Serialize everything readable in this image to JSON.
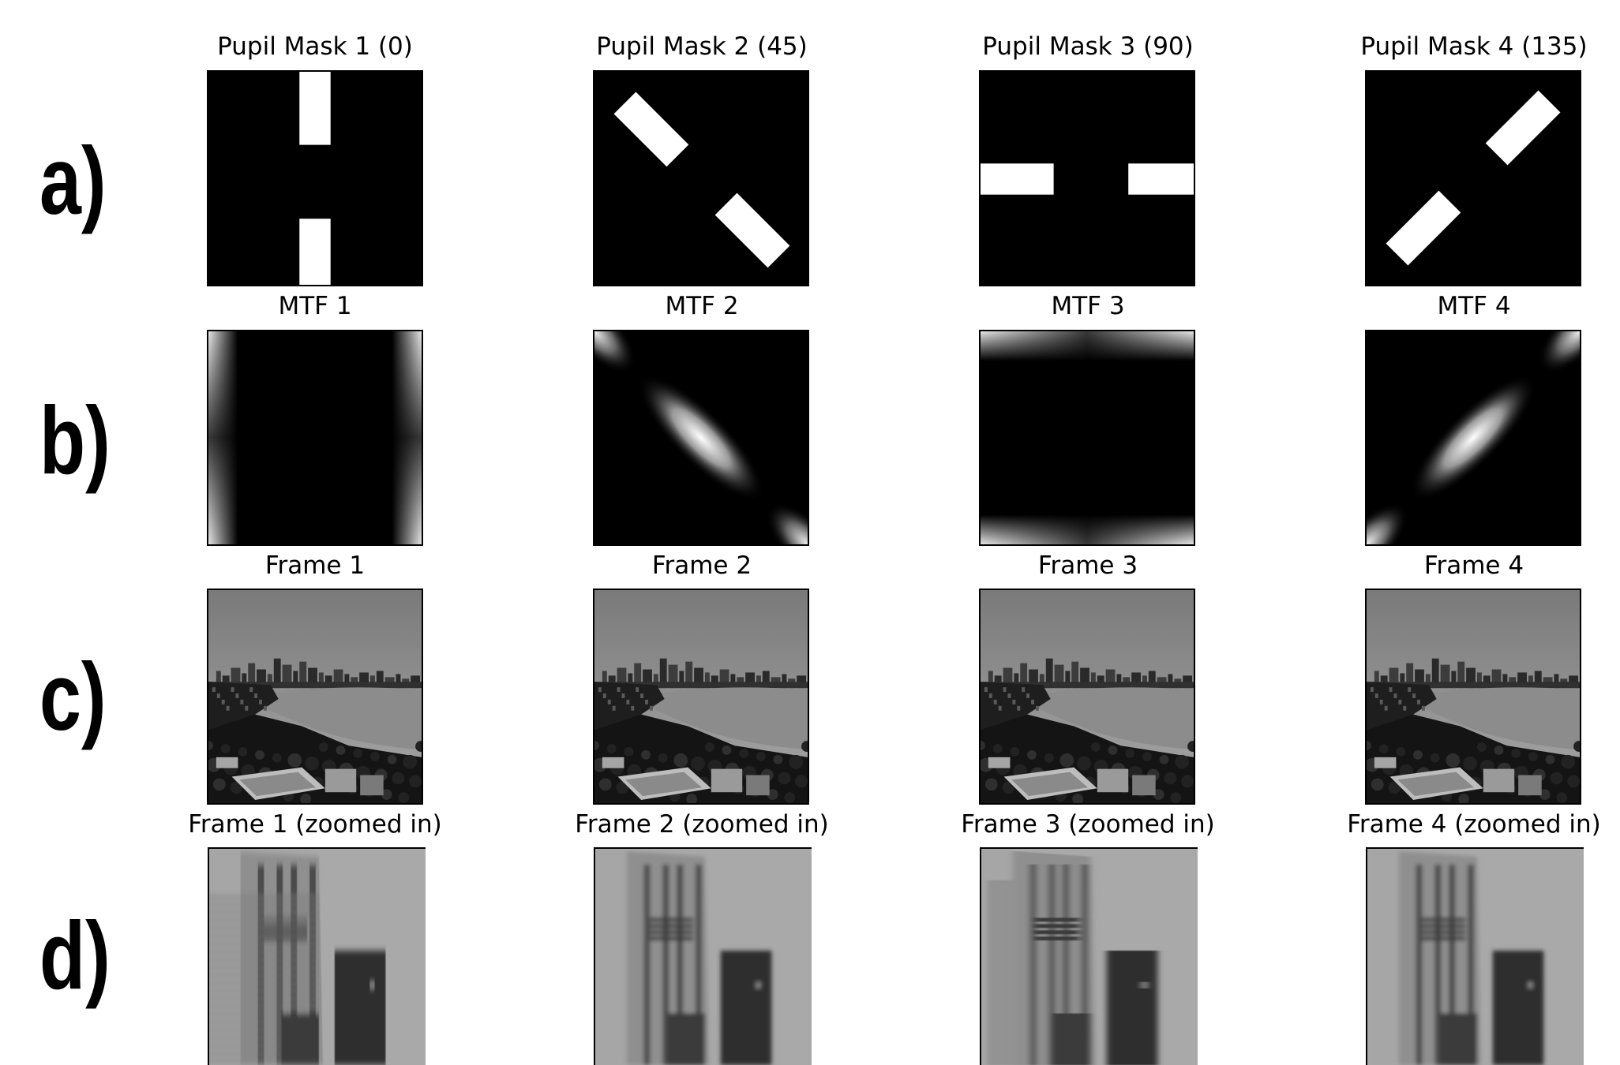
{
  "rows": {
    "a": "a)",
    "b": "b)",
    "c": "c)",
    "d": "d)"
  },
  "titles": {
    "masks": [
      "Pupil Mask 1 (0)",
      "Pupil Mask 2 (45)",
      "Pupil Mask 3 (90)",
      "Pupil Mask 4 (135)"
    ],
    "mtf": [
      "MTF 1",
      "MTF 2",
      "MTF 3",
      "MTF 4"
    ],
    "frames": [
      "Frame 1",
      "Frame 2",
      "Frame 3",
      "Frame 4"
    ],
    "zoomed": [
      "Frame 1  (zoomed in)",
      "Frame 2  (zoomed in)",
      "Frame 3  (zoomed in)",
      "Frame 4  (zoomed in)"
    ]
  },
  "mask_angles_deg": [
    0,
    45,
    90,
    135
  ]
}
